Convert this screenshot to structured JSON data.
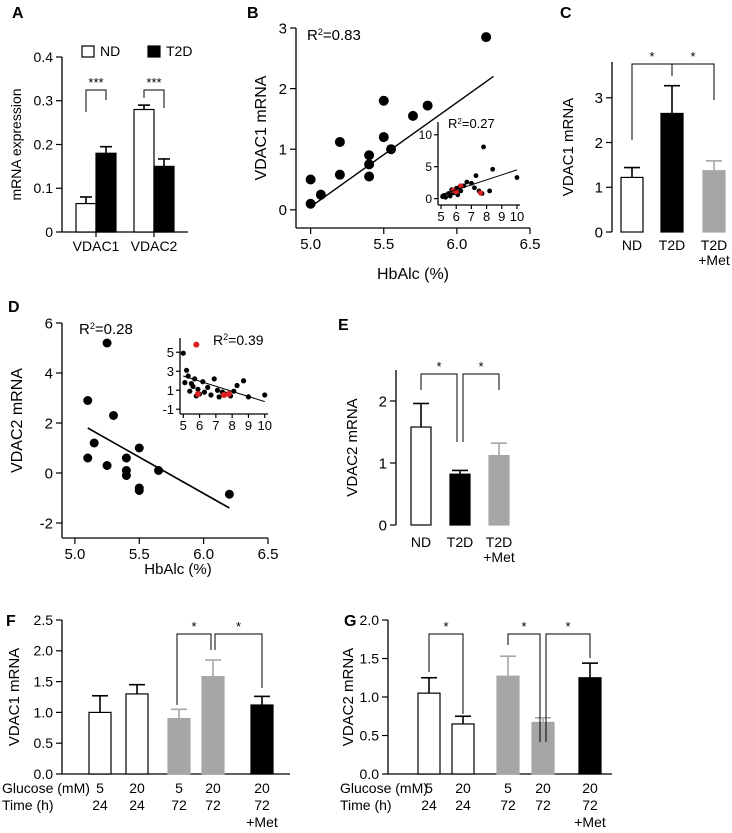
{
  "chart_data": [
    {
      "id": "A",
      "panel_label": "A",
      "type": "bar",
      "ylabel": "mRNA expression",
      "categories": [
        "VDAC1",
        "VDAC2"
      ],
      "ylim": [
        0,
        0.4
      ],
      "yticks": [
        "0",
        "0.1",
        "0.2",
        "0.3",
        "0.4"
      ],
      "series": [
        {
          "name": "ND",
          "color": "#ffffff",
          "values": [
            0.065,
            0.28
          ],
          "errors": [
            0.015,
            0.01
          ]
        },
        {
          "name": "T2D",
          "color": "#000000",
          "values": [
            0.18,
            0.15
          ],
          "errors": [
            0.015,
            0.017
          ]
        }
      ],
      "significance": [
        "***",
        "***"
      ]
    },
    {
      "id": "B",
      "panel_label": "B",
      "type": "scatter",
      "xlabel": "HbAlc (%)",
      "ylabel": "VDAC1 mRNA",
      "xlim": [
        4.9,
        6.5
      ],
      "ylim": [
        -0.3,
        3.0
      ],
      "xticks": [
        "5.0",
        "5.5",
        "6.0",
        "6.5"
      ],
      "yticks": [
        "0",
        "1",
        "2",
        "3"
      ],
      "r2": "0.83",
      "points": [
        [
          5.0,
          0.1
        ],
        [
          5.0,
          0.5
        ],
        [
          5.07,
          0.25
        ],
        [
          5.2,
          0.58
        ],
        [
          5.2,
          1.12
        ],
        [
          5.4,
          0.55
        ],
        [
          5.4,
          0.75
        ],
        [
          5.4,
          0.9
        ],
        [
          5.5,
          1.2
        ],
        [
          5.5,
          1.8
        ],
        [
          5.55,
          1.0
        ],
        [
          5.7,
          1.55
        ],
        [
          5.8,
          1.72
        ],
        [
          6.2,
          2.85
        ]
      ],
      "fit": [
        [
          5.0,
          0.05
        ],
        [
          6.25,
          2.2
        ]
      ],
      "inset": {
        "xlim": [
          4.8,
          10.2
        ],
        "ylim": [
          -1.0,
          12.0
        ],
        "xticks": [
          "5",
          "6",
          "7",
          "8",
          "9",
          "10"
        ],
        "yticks": [
          "0",
          "5",
          "10"
        ],
        "r2": "0.27",
        "points_black": [
          [
            5.1,
            0.3
          ],
          [
            5.2,
            0.5
          ],
          [
            5.3,
            0.2
          ],
          [
            5.5,
            0.8
          ],
          [
            5.6,
            0.4
          ],
          [
            5.7,
            1.4
          ],
          [
            5.8,
            0.9
          ],
          [
            5.9,
            1.0
          ],
          [
            6.0,
            1.6
          ],
          [
            6.1,
            0.6
          ],
          [
            6.2,
            1.8
          ],
          [
            6.3,
            1.2
          ],
          [
            6.5,
            2.0
          ],
          [
            6.7,
            2.6
          ],
          [
            7.0,
            2.4
          ],
          [
            7.2,
            1.7
          ],
          [
            7.3,
            3.6
          ],
          [
            7.5,
            1.2
          ],
          [
            7.7,
            0.8
          ],
          [
            7.8,
            8.1
          ],
          [
            8.2,
            1.2
          ],
          [
            8.4,
            4.6
          ],
          [
            10.0,
            3.3
          ]
        ],
        "points_red": [
          [
            5.8,
            1.3
          ],
          [
            6.0,
            1.1
          ],
          [
            6.3,
            2.0
          ],
          [
            7.6,
            0.9
          ]
        ],
        "fit": [
          [
            5.0,
            0.6
          ],
          [
            10.0,
            4.5
          ]
        ]
      }
    },
    {
      "id": "C",
      "panel_label": "C",
      "type": "bar",
      "ylabel": "VDAC1  mRNA",
      "categories": [
        "ND",
        "T2D",
        "T2D +Met"
      ],
      "category_lines": [
        [
          "ND"
        ],
        [
          "T2D"
        ],
        [
          "T2D",
          "+Met"
        ]
      ],
      "ylim": [
        0,
        3.8
      ],
      "yticks": [
        "0",
        "1",
        "2",
        "3"
      ],
      "values": [
        1.22,
        2.65,
        1.37
      ],
      "errors": [
        0.22,
        0.62,
        0.22
      ],
      "colors": [
        "#ffffff",
        "#000000",
        "#a6a6a6"
      ],
      "significance": [
        "*",
        "*"
      ]
    },
    {
      "id": "D",
      "panel_label": "D",
      "type": "scatter",
      "xlabel": "HbAlc (%)",
      "ylabel": "VDAC2 mRNA",
      "xlim": [
        4.9,
        6.5
      ],
      "ylim": [
        -2.6,
        6.0
      ],
      "xticks": [
        "5.0",
        "5.5",
        "6.0",
        "6.5"
      ],
      "yticks": [
        "-2",
        "0",
        "2",
        "4",
        "6"
      ],
      "r2": "0.28",
      "points": [
        [
          5.1,
          2.9
        ],
        [
          5.1,
          0.6
        ],
        [
          5.15,
          1.2
        ],
        [
          5.25,
          5.2
        ],
        [
          5.25,
          0.3
        ],
        [
          5.3,
          2.3
        ],
        [
          5.4,
          0.6
        ],
        [
          5.4,
          0.1
        ],
        [
          5.4,
          -0.1
        ],
        [
          5.5,
          1.0
        ],
        [
          5.5,
          -0.6
        ],
        [
          5.5,
          -0.7
        ],
        [
          5.65,
          0.1
        ],
        [
          6.2,
          -0.85
        ]
      ],
      "fit": [
        [
          5.1,
          1.8
        ],
        [
          6.2,
          -1.4
        ]
      ],
      "inset": {
        "xlim": [
          4.8,
          10.2
        ],
        "ylim": [
          -1.5,
          6.5
        ],
        "xticks": [
          "5",
          "6",
          "7",
          "8",
          "9",
          "10"
        ],
        "yticks": [
          "-1",
          "1",
          "3",
          "5"
        ],
        "r2": "0.39",
        "points_black": [
          [
            5.0,
            4.9
          ],
          [
            5.1,
            1.8
          ],
          [
            5.2,
            3.1
          ],
          [
            5.3,
            2.5
          ],
          [
            5.4,
            0.9
          ],
          [
            5.5,
            1.7
          ],
          [
            5.6,
            1.4
          ],
          [
            5.7,
            2.2
          ],
          [
            5.8,
            0.4
          ],
          [
            5.9,
            1.1
          ],
          [
            6.0,
            0.6
          ],
          [
            6.2,
            1.9
          ],
          [
            6.3,
            0.8
          ],
          [
            6.5,
            1.3
          ],
          [
            6.7,
            0.5
          ],
          [
            6.9,
            2.2
          ],
          [
            7.1,
            1.0
          ],
          [
            7.2,
            0.3
          ],
          [
            7.4,
            0.8
          ],
          [
            7.6,
            0.6
          ],
          [
            7.9,
            0.4
          ],
          [
            8.1,
            0.9
          ],
          [
            8.3,
            1.5
          ],
          [
            8.7,
            2.0
          ],
          [
            9.0,
            0.3
          ],
          [
            10.0,
            0.5
          ]
        ],
        "points_red": [
          [
            5.8,
            5.8
          ],
          [
            5.9,
            0.6
          ],
          [
            7.5,
            0.5
          ],
          [
            7.8,
            0.6
          ]
        ],
        "fit": [
          [
            5.0,
            2.5
          ],
          [
            10.0,
            -0.2
          ]
        ]
      }
    },
    {
      "id": "E",
      "panel_label": "E",
      "type": "bar",
      "ylabel": "VDAC2  mRNA",
      "categories": [
        "ND",
        "T2D",
        "T2D +Met"
      ],
      "category_lines": [
        [
          "ND"
        ],
        [
          "T2D"
        ],
        [
          "T2D",
          "+Met"
        ]
      ],
      "ylim": [
        0,
        2.5
      ],
      "yticks": [
        "0",
        "1",
        "2"
      ],
      "values": [
        1.58,
        0.82,
        1.12
      ],
      "errors": [
        0.38,
        0.06,
        0.2
      ],
      "colors": [
        "#ffffff",
        "#000000",
        "#a6a6a6"
      ],
      "significance": [
        "*",
        "*"
      ]
    },
    {
      "id": "F",
      "panel_label": "F",
      "type": "bar",
      "ylabel": "VDAC1 mRNA",
      "row_labels": [
        "Glucose (mM)",
        "Time (h)"
      ],
      "glucose": [
        "5",
        "20",
        "5",
        "20",
        "20"
      ],
      "time": [
        "24",
        "24",
        "72",
        "72",
        "72"
      ],
      "extra": [
        "",
        "",
        "",
        "",
        "+Met"
      ],
      "ylim": [
        0,
        2.5
      ],
      "yticks": [
        "0.0",
        "0.5",
        "1.0",
        "1.5",
        "2.0",
        "2.5"
      ],
      "values": [
        1.0,
        1.3,
        0.9,
        1.58,
        1.12
      ],
      "errors": [
        0.27,
        0.15,
        0.15,
        0.27,
        0.14
      ],
      "colors": [
        "#ffffff",
        "#ffffff",
        "#a6a6a6",
        "#a6a6a6",
        "#000000"
      ],
      "significance": [
        "*",
        "*"
      ]
    },
    {
      "id": "G",
      "panel_label": "G",
      "type": "bar",
      "ylabel": "VDAC2 mRNA",
      "row_labels": [
        "Glucose (mM)",
        "Time (h)"
      ],
      "glucose": [
        "5",
        "20",
        "5",
        "20",
        "20"
      ],
      "time": [
        "24",
        "24",
        "72",
        "72",
        "72"
      ],
      "extra": [
        "",
        "",
        "",
        "",
        "+Met"
      ],
      "ylim": [
        0,
        2.0
      ],
      "yticks": [
        "0.0",
        "0.5",
        "1.0",
        "1.5",
        "2.0"
      ],
      "values": [
        1.05,
        0.65,
        1.27,
        0.67,
        1.25
      ],
      "errors": [
        0.2,
        0.1,
        0.26,
        0.06,
        0.19
      ],
      "colors": [
        "#ffffff",
        "#ffffff",
        "#a6a6a6",
        "#a6a6a6",
        "#000000"
      ],
      "significance": [
        "*",
        "*",
        "*"
      ]
    }
  ]
}
